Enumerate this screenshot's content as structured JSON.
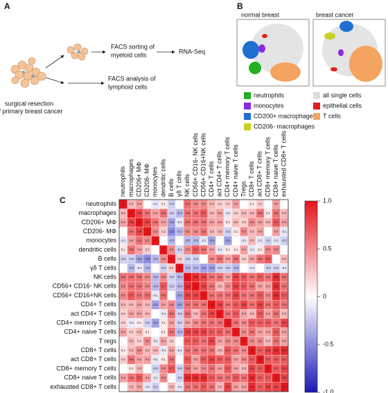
{
  "panel_a": {
    "label": "A",
    "sort_text": [
      "FACS sorting of",
      "myeloid cells"
    ],
    "rnaseq": "RNA-Seq",
    "analysis_text": [
      "FACS analysis of",
      "lymphoid cells"
    ],
    "resection_text": [
      "surgical resection",
      "of primary breast cancer"
    ]
  },
  "panel_b": {
    "label": "B",
    "titles": [
      "normal breast",
      "breast cancer"
    ],
    "legend": [
      {
        "name": "neutrophils",
        "color": "#22b022"
      },
      {
        "name": "monocytes",
        "color": "#8a2be2"
      },
      {
        "name": "CD200+ macrophages",
        "color": "#1f6fd0"
      },
      {
        "name": "CD206- macrophages",
        "color": "#c8d020"
      },
      {
        "name": "all single cells",
        "color": "#dcdcdc"
      },
      {
        "name": "epithelial cells",
        "color": "#e0201a"
      },
      {
        "name": "T cells",
        "color": "#f4a460"
      }
    ]
  },
  "chart_data": {
    "type": "heatmap",
    "panel_label": "C",
    "rows": [
      "neutrophils",
      "macrophages",
      "CD206+ MΦ",
      "CD206- MΦ",
      "monocytes",
      "dendritic cells",
      "B cells",
      "γδ T cells",
      "NK cells",
      "CD56+ CD16- NK cells",
      "CD56+ CD16+NK cells",
      "CD4+ T cells",
      "act CD4+ T cells",
      "CD4+ memory T cells",
      "CD4+ naive T cells",
      "T regs",
      "CD8+ T cells",
      "act CD8+ T cells",
      "CD8+ memory T cells",
      "CD8+ naive T cells",
      "exhausted CD8+ T cells"
    ],
    "columns": [
      "neutrophils",
      "macrophages",
      "CD206+ MΦ",
      "CD206- MΦ",
      "monocytes",
      "dendritic cells",
      "B cells",
      "γδ T cells",
      "NK cells",
      "CD56+ CD16- NK cells",
      "CD56+ CD16+NK cells",
      "CD4+ T cells",
      "act CD4+ T cells",
      "CD4+ memory T cells",
      "CD4+ naive T cells",
      "Tregs",
      "CD8+ T cells",
      "act CD8+ T cells",
      "CD8+ memory T cells",
      "CD8+ naive T cells",
      "exhausted CD8+ T cells"
    ],
    "values": [
      [
        1,
        0.3,
        0.4,
        null,
        -0.1,
        0.1,
        -0.2,
        null,
        0.6,
        0.5,
        0.5,
        0.3,
        0.2,
        0.2,
        0.4,
        null,
        0.1,
        0.2,
        null,
        0.4,
        null
      ],
      [
        0.3,
        1,
        0.8,
        0.6,
        0.4,
        0.6,
        -0.2,
        -0.3,
        0.6,
        0.6,
        0.7,
        0.3,
        0.4,
        -0.1,
        0.2,
        0.3,
        0.3,
        0.6,
        0.1,
        0.6,
        0.3
      ],
      [
        0.4,
        0.8,
        1,
        0.8,
        0.6,
        0.4,
        -0.4,
        -0.1,
        0.6,
        0.6,
        0.6,
        0.4,
        0.4,
        0.1,
        0.3,
        0.2,
        0.5,
        0.4,
        0.3,
        0.7,
        0.4
      ],
      [
        null,
        0.6,
        0.8,
        1,
        0.5,
        0.2,
        -0.5,
        -0.3,
        0.5,
        0.5,
        0.6,
        0.3,
        0.3,
        -0.2,
        0.1,
        0.5,
        0.3,
        0.4,
        null,
        0.4,
        -0.1
      ],
      [
        -0.1,
        0.4,
        0.6,
        0.5,
        1,
        null,
        -0.3,
        null,
        -0.3,
        -0.3,
        -0.1,
        -0.4,
        null,
        -0.4,
        null,
        -0.1,
        0.3,
        -0.1,
        -0.2,
        -0.1,
        -0.2
      ],
      [
        0.1,
        0.6,
        0.4,
        0.2,
        null,
        1,
        0.5,
        -0.2,
        0.5,
        0.7,
        0.6,
        0.4,
        -0.1,
        0.1,
        0.1,
        0.4,
        -0.1,
        0.1,
        0.5,
        0.5,
        null
      ],
      [
        -0.2,
        -0.2,
        -0.4,
        -0.5,
        -0.3,
        0.5,
        1,
        0.2,
        -0.2,
        -0.2,
        null,
        0.5,
        0.6,
        0.4,
        0.6,
        0.2,
        0.4,
        0.6,
        0.7,
        null,
        0.3
      ],
      [
        null,
        -0.3,
        -0.1,
        -0.3,
        null,
        -0.2,
        0.2,
        1,
        -0.3,
        -0.3,
        -0.4,
        -0.4,
        -0.2,
        -0.2,
        -0.3,
        null,
        -0.1,
        null,
        -0.2,
        -0.2,
        -0.1
      ],
      [
        0.6,
        0.6,
        0.6,
        0.5,
        -0.3,
        0.5,
        -0.2,
        -0.3,
        1,
        0.9,
        0.8,
        0.6,
        0.6,
        0.4,
        0.8,
        0.7,
        0.6,
        0.7,
        0.6,
        0.9,
        0.6
      ],
      [
        0.5,
        0.6,
        0.6,
        0.5,
        -0.3,
        0.7,
        -0.2,
        -0.3,
        0.9,
        1,
        0.8,
        0.6,
        0.3,
        0.5,
        0.8,
        0.7,
        0.6,
        0.4,
        0.4,
        0.9,
        0.6
      ],
      [
        0.5,
        0.7,
        0.6,
        0.6,
        -0.1,
        0.6,
        null,
        -0.4,
        0.8,
        0.8,
        1,
        0.6,
        0.6,
        0.6,
        0.8,
        0.6,
        0.6,
        0.7,
        0.5,
        0.9,
        0.7
      ],
      [
        0.3,
        0.3,
        0.4,
        0.3,
        -0.4,
        0.4,
        0.5,
        -0.4,
        0.6,
        0.6,
        0.6,
        1,
        0.8,
        0.6,
        0.7,
        0.8,
        0.6,
        0.8,
        0.6,
        0.7,
        0.6
      ],
      [
        0.2,
        0.4,
        0.4,
        0.3,
        null,
        -0.1,
        0.6,
        -0.2,
        0.6,
        0.3,
        0.6,
        0.8,
        1,
        0.6,
        0.7,
        0.4,
        0.3,
        0.7,
        0.4,
        0.6,
        0.3
      ],
      [
        0.2,
        -0.1,
        0.1,
        -0.2,
        -0.4,
        0.1,
        0.4,
        -0.2,
        0.4,
        0.5,
        0.6,
        0.6,
        0.6,
        1,
        0.6,
        0.5,
        0.7,
        0.7,
        0.7,
        0.6,
        0.8
      ],
      [
        0.4,
        0.2,
        0.3,
        0.1,
        null,
        0.1,
        0.6,
        -0.3,
        0.8,
        0.8,
        0.8,
        0.7,
        0.7,
        0.6,
        1,
        0.5,
        0.6,
        0.4,
        0.4,
        0.7,
        0.4
      ],
      [
        null,
        0.3,
        0.2,
        0.5,
        -0.1,
        0.4,
        0.2,
        null,
        0.7,
        0.7,
        0.6,
        0.8,
        0.4,
        0.5,
        0.5,
        1,
        0.5,
        0.5,
        0.3,
        0.6,
        0.4
      ],
      [
        0.1,
        0.3,
        0.5,
        0.3,
        0.3,
        -0.1,
        0.4,
        -0.1,
        0.6,
        0.6,
        0.6,
        0.6,
        0.3,
        0.7,
        0.6,
        0.5,
        1,
        0.7,
        0.8,
        0.9,
        0.9
      ],
      [
        0.2,
        0.6,
        0.4,
        0.4,
        -0.1,
        0.1,
        0.6,
        null,
        0.7,
        0.4,
        0.7,
        0.8,
        0.7,
        0.7,
        0.4,
        0.5,
        0.7,
        1,
        0.7,
        0.7,
        0.7
      ],
      [
        null,
        0.1,
        0.3,
        null,
        -0.2,
        0.5,
        0.7,
        -0.2,
        0.6,
        0.4,
        0.5,
        0.6,
        0.4,
        0.7,
        0.4,
        0.3,
        0.8,
        0.7,
        1,
        0.7,
        0.8
      ],
      [
        0.4,
        0.6,
        0.7,
        0.4,
        -0.1,
        0.5,
        null,
        -0.2,
        0.9,
        0.9,
        0.9,
        0.7,
        0.6,
        0.6,
        0.7,
        0.6,
        0.9,
        0.7,
        0.7,
        1,
        0.8
      ],
      [
        null,
        0.3,
        0.4,
        -0.1,
        -0.2,
        null,
        0.3,
        -0.1,
        0.6,
        0.6,
        0.7,
        0.6,
        0.3,
        0.8,
        0.4,
        0.4,
        0.9,
        0.7,
        0.8,
        0.8,
        1
      ]
    ],
    "zlim": [
      -1,
      1
    ],
    "zticks": [
      {
        "value": 1,
        "label": "1.0"
      },
      0.5,
      0,
      -0.5,
      {
        "value": -1,
        "label": "-1.0"
      }
    ],
    "colors": {
      "low": "#1a1ab8",
      "mid": "#ffffff",
      "high": "#e3161b"
    }
  }
}
